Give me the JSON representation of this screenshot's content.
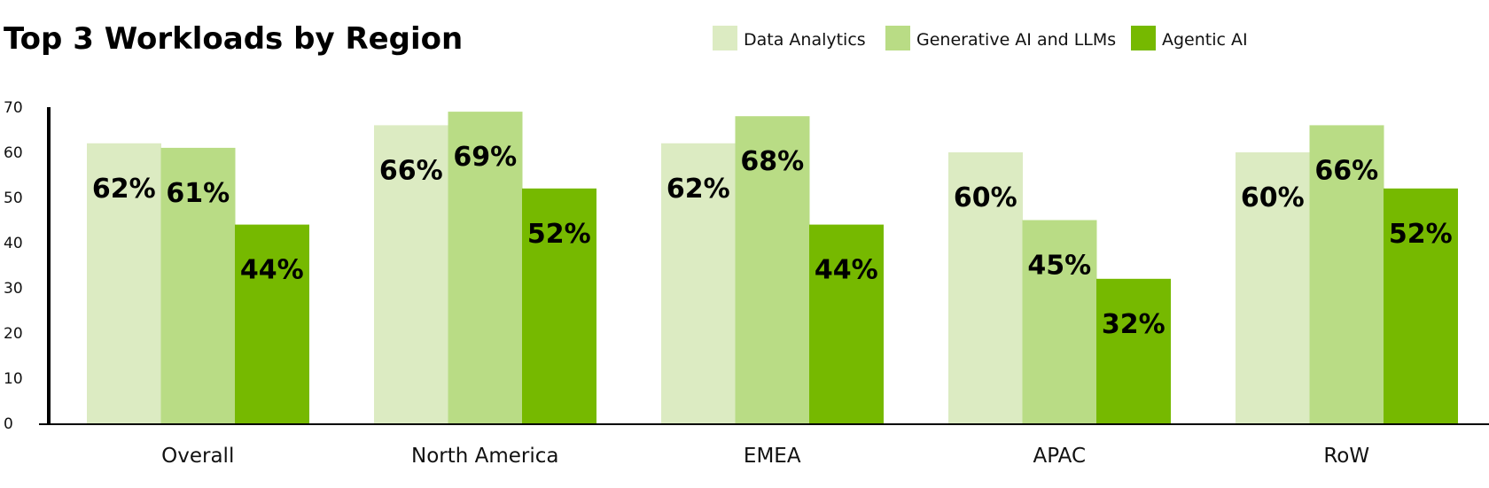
{
  "chart_data": {
    "type": "bar",
    "title": "Top 3 Workloads by Region",
    "xlabel": "",
    "ylabel": "",
    "ylim": [
      0,
      70
    ],
    "yticks": [
      0,
      10,
      20,
      30,
      40,
      50,
      60,
      70
    ],
    "categories": [
      "Overall",
      "North America",
      "EMEA",
      "APAC",
      "RoW"
    ],
    "series": [
      {
        "name": "Data Analytics",
        "color": "#dcebc2",
        "values": [
          62,
          66,
          62,
          60,
          60
        ],
        "labels": [
          "62%",
          "66%",
          "62%",
          "60%",
          "60%"
        ]
      },
      {
        "name": "Generative AI and LLMs",
        "color": "#b9dc85",
        "values": [
          61,
          69,
          68,
          45,
          66
        ],
        "labels": [
          "61%",
          "69%",
          "68%",
          "45%",
          "66%"
        ]
      },
      {
        "name": "Agentic AI",
        "color": "#76b900",
        "values": [
          44,
          52,
          44,
          32,
          52
        ],
        "labels": [
          "44%",
          "52%",
          "44%",
          "32%",
          "52%"
        ]
      }
    ],
    "legend_position": "top-right",
    "grid": false
  }
}
